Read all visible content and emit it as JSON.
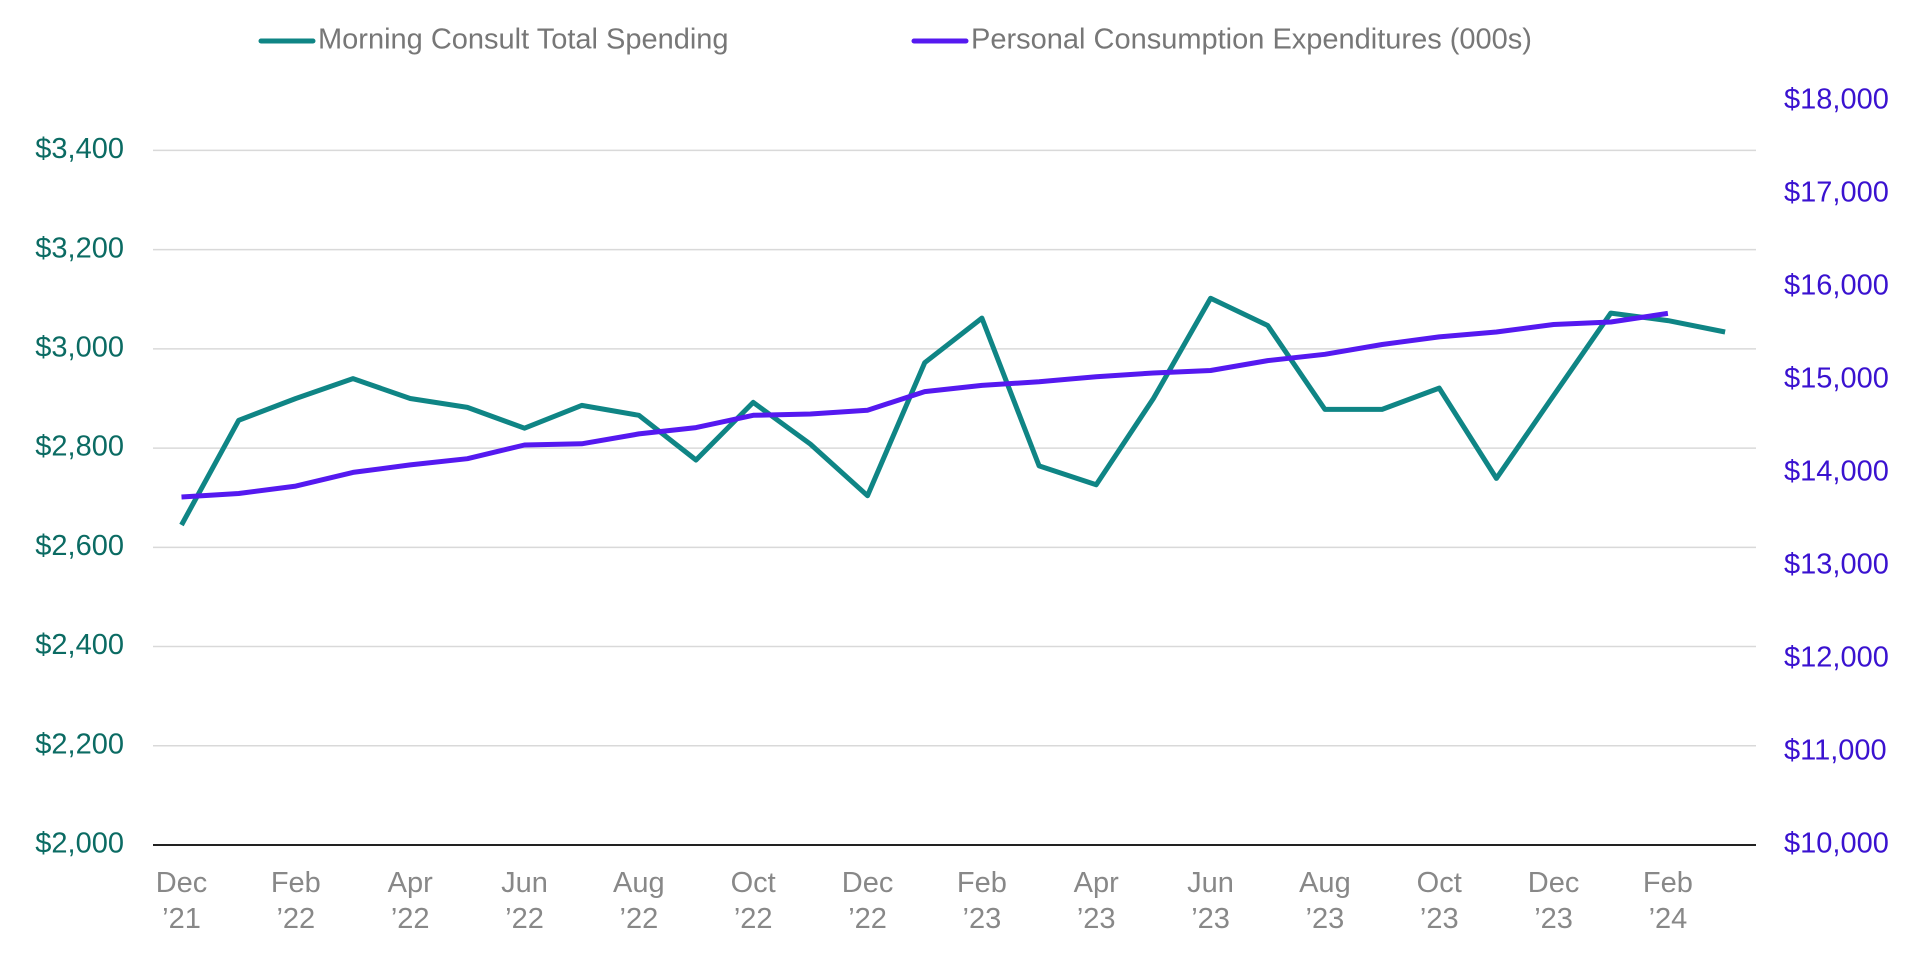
{
  "chart_data": {
    "type": "line",
    "categories": [
      "Dec ’21",
      null,
      "Feb ’22",
      null,
      "Apr ’22",
      null,
      "Jun ’22",
      null,
      "Aug ’22",
      null,
      "Oct ’22",
      null,
      "Dec ’22",
      null,
      "Feb ’23",
      null,
      "Apr ’23",
      null,
      "Jun ’23",
      null,
      "Aug ’23",
      null,
      "Oct ’23",
      null,
      "Dec ’23",
      null,
      "Feb ’24",
      null
    ],
    "series": [
      {
        "name": "Morning Consult Total Spending",
        "color": "#0f8585",
        "values": [
          2645,
          2856,
          2900,
          2940,
          2900,
          2882,
          2840,
          2886,
          2866,
          2776,
          2892,
          2808,
          2704,
          2972,
          3062,
          2764,
          2726,
          2900,
          3102,
          3047,
          2878,
          2878,
          2921,
          2739,
          2906,
          3072,
          3057,
          3034
        ]
      },
      {
        "name": "Personal Consumption Expenditures (000s)",
        "color": "#5519f0",
        "axis": "y2",
        "values": [
          13740,
          13778,
          13858,
          14005,
          14085,
          14152,
          14299,
          14312,
          14419,
          14486,
          14619,
          14633,
          14673,
          14873,
          14940,
          14980,
          15033,
          15073,
          15100,
          15207,
          15274,
          15380,
          15461,
          15514,
          15594,
          15621,
          15714,
          null
        ]
      }
    ],
    "ylim": [
      2000,
      3400
    ],
    "yticks": [
      {
        "value": 2000,
        "label": "$2,000"
      },
      {
        "value": 2200,
        "label": "$2,200"
      },
      {
        "value": 2400,
        "label": "$2,400"
      },
      {
        "value": 2600,
        "label": "$2,600"
      },
      {
        "value": 2800,
        "label": "$2,800"
      },
      {
        "value": 3000,
        "label": "$3,000"
      },
      {
        "value": 3200,
        "label": "$3,200"
      },
      {
        "value": 3400,
        "label": "$3,400"
      }
    ],
    "y2lim": [
      10000,
      18000
    ],
    "y2ticks": [
      {
        "value": 10000,
        "label": "$10,000"
      },
      {
        "value": 11000,
        "label": "$11,000"
      },
      {
        "value": 12000,
        "label": "$12,000"
      },
      {
        "value": 13000,
        "label": "$13,000"
      },
      {
        "value": 14000,
        "label": "$14,000"
      },
      {
        "value": 15000,
        "label": "$15,000"
      },
      {
        "value": 16000,
        "label": "$16,000"
      },
      {
        "value": 17000,
        "label": "$17,000"
      },
      {
        "value": 18000,
        "label": "$18,000"
      }
    ],
    "grid": true,
    "legend": "top"
  }
}
